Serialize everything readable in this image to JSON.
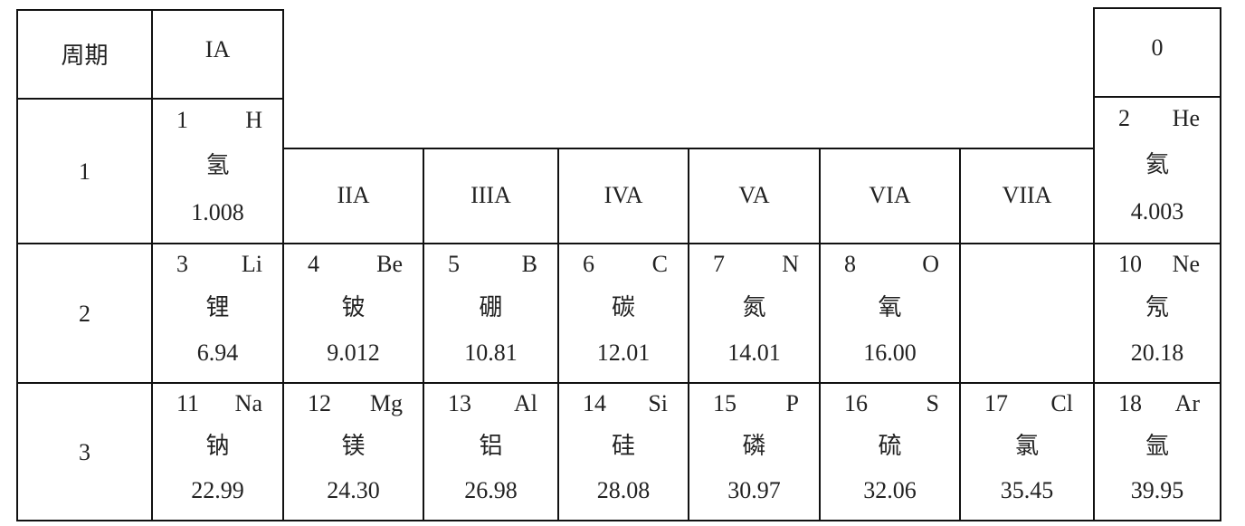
{
  "header": {
    "period_label": "周期",
    "groups": [
      "IA",
      "IIA",
      "IIIA",
      "IVA",
      "VA",
      "VIA",
      "VIIA",
      "0"
    ]
  },
  "periods": [
    {
      "label": "1",
      "cells": [
        {
          "number": "1",
          "symbol": "H",
          "name": "氢",
          "mass": "1.008"
        },
        null,
        null,
        null,
        null,
        null,
        null,
        {
          "number": "2",
          "symbol": "He",
          "name": "氦",
          "mass": "4.003"
        }
      ]
    },
    {
      "label": "2",
      "cells": [
        {
          "number": "3",
          "symbol": "Li",
          "name": "锂",
          "mass": "6.94"
        },
        {
          "number": "4",
          "symbol": "Be",
          "name": "铍",
          "mass": "9.012"
        },
        {
          "number": "5",
          "symbol": "B",
          "name": "硼",
          "mass": "10.81"
        },
        {
          "number": "6",
          "symbol": "C",
          "name": "碳",
          "mass": "12.01"
        },
        {
          "number": "7",
          "symbol": "N",
          "name": "氮",
          "mass": "14.01"
        },
        {
          "number": "8",
          "symbol": "O",
          "name": "氧",
          "mass": "16.00"
        },
        null,
        {
          "number": "10",
          "symbol": "Ne",
          "name": "氖",
          "mass": "20.18"
        }
      ]
    },
    {
      "label": "3",
      "cells": [
        {
          "number": "11",
          "symbol": "Na",
          "name": "钠",
          "mass": "22.99"
        },
        {
          "number": "12",
          "symbol": "Mg",
          "name": "镁",
          "mass": "24.30"
        },
        {
          "number": "13",
          "symbol": "Al",
          "name": "铝",
          "mass": "26.98"
        },
        {
          "number": "14",
          "symbol": "Si",
          "name": "硅",
          "mass": "28.08"
        },
        {
          "number": "15",
          "symbol": "P",
          "name": "磷",
          "mass": "30.97"
        },
        {
          "number": "16",
          "symbol": "S",
          "name": "硫",
          "mass": "32.06"
        },
        {
          "number": "17",
          "symbol": "Cl",
          "name": "氯",
          "mass": "35.45"
        },
        {
          "number": "18",
          "symbol": "Ar",
          "name": "氩",
          "mass": "39.95"
        }
      ]
    }
  ]
}
